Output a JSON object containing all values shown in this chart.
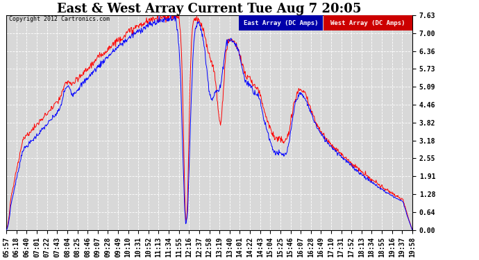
{
  "title": "East & West Array Current Tue Aug 7 20:05",
  "copyright": "Copyright 2012 Cartronics.com",
  "legend_east": "East Array (DC Amps)",
  "legend_west": "West Array (DC Amps)",
  "east_color": "#0000ff",
  "west_color": "#ff0000",
  "ylim": [
    0,
    7.63
  ],
  "yticks": [
    0.0,
    0.64,
    1.28,
    1.91,
    2.55,
    3.18,
    3.82,
    4.46,
    5.09,
    5.73,
    6.36,
    7.0,
    7.63
  ],
  "bg_color": "#ffffff",
  "plot_bg_color": "#d8d8d8",
  "grid_color": "#ffffff",
  "title_fontsize": 13,
  "tick_fontsize": 7,
  "xtick_labels": [
    "05:57",
    "06:18",
    "06:40",
    "07:01",
    "07:22",
    "07:43",
    "08:04",
    "08:25",
    "08:46",
    "09:07",
    "09:28",
    "09:49",
    "10:10",
    "10:31",
    "10:52",
    "11:13",
    "11:34",
    "11:55",
    "12:16",
    "12:37",
    "12:58",
    "13:19",
    "13:40",
    "14:01",
    "14:22",
    "14:43",
    "15:04",
    "15:25",
    "15:46",
    "16:07",
    "16:28",
    "16:49",
    "17:10",
    "17:31",
    "17:52",
    "18:13",
    "18:34",
    "18:55",
    "19:16",
    "19:37",
    "19:58"
  ]
}
